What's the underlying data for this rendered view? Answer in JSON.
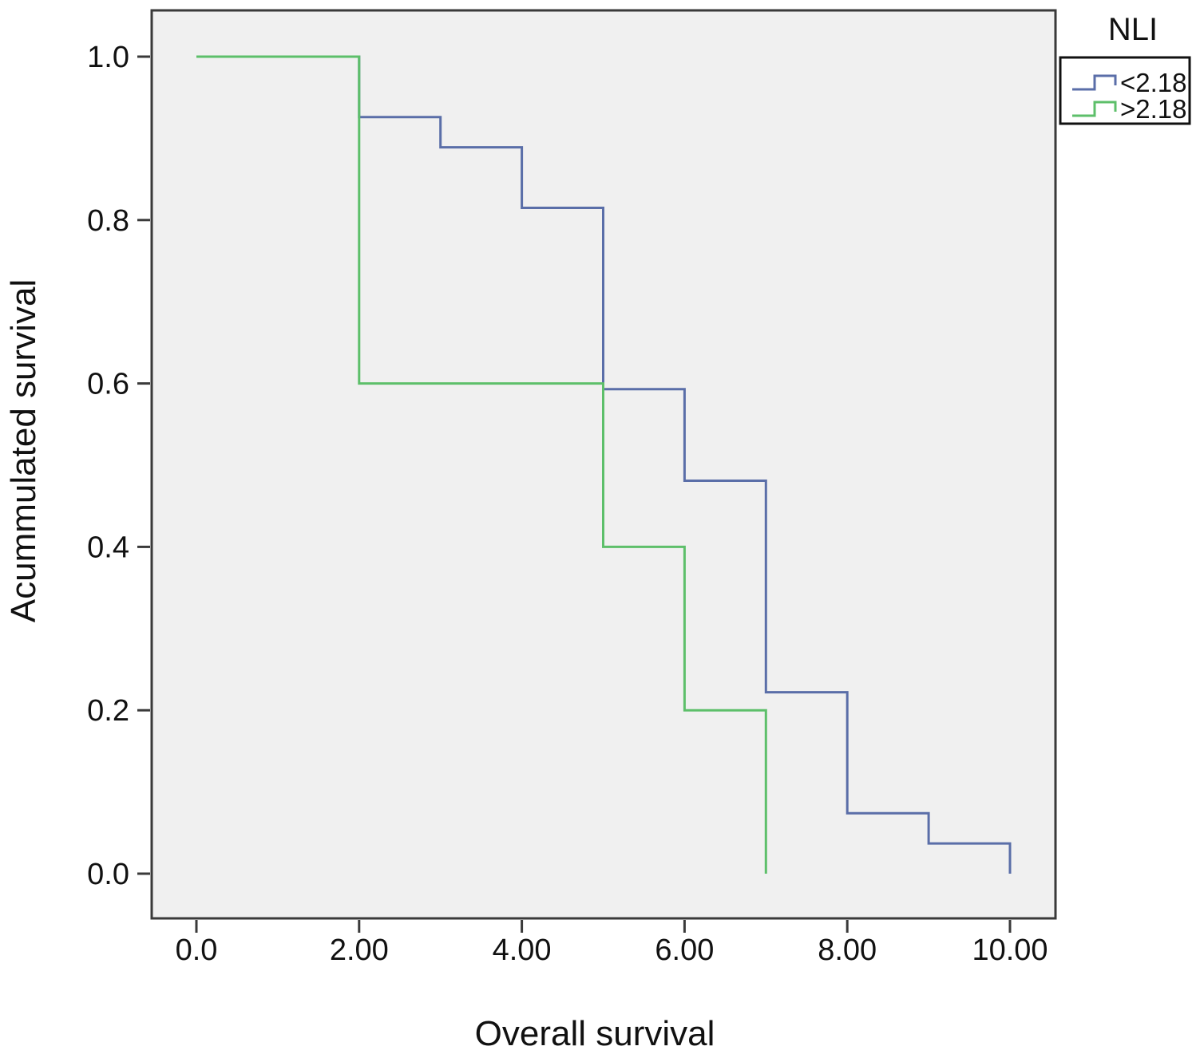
{
  "chart_data": {
    "type": "line",
    "step": true,
    "title": "",
    "xlabel": "Overall survival",
    "ylabel": "Acummulated survival",
    "xlim": [
      0,
      10
    ],
    "ylim": [
      0,
      1
    ],
    "x_ticks": [
      {
        "value": 0,
        "label": "0.0"
      },
      {
        "value": 2,
        "label": "2.00"
      },
      {
        "value": 4,
        "label": "4.00"
      },
      {
        "value": 6,
        "label": "6.00"
      },
      {
        "value": 8,
        "label": "8.00"
      },
      {
        "value": 10,
        "label": "10.00"
      }
    ],
    "y_ticks": [
      {
        "value": 0,
        "label": "0.0"
      },
      {
        "value": 0.2,
        "label": "0.2"
      },
      {
        "value": 0.4,
        "label": "0.4"
      },
      {
        "value": 0.6,
        "label": "0.6"
      },
      {
        "value": 0.8,
        "label": "0.8"
      },
      {
        "value": 1.0,
        "label": "1.0"
      }
    ],
    "grid": false,
    "legend_title": "NLI",
    "legend_position": "top-right",
    "background_color": "#f0f0f0",
    "series": [
      {
        "name": "<2.18",
        "color": "#5a6ea8",
        "x": [
          0,
          2,
          3,
          4,
          5,
          6,
          7,
          8,
          9,
          10
        ],
        "y": [
          1.0,
          0.926,
          0.889,
          0.815,
          0.593,
          0.481,
          0.222,
          0.074,
          0.037,
          0.0
        ]
      },
      {
        "name": ">2.18",
        "color": "#5dbf6a",
        "x": [
          0,
          2,
          5,
          6,
          7
        ],
        "y": [
          1.0,
          0.6,
          0.4,
          0.2,
          0.0
        ]
      }
    ]
  }
}
